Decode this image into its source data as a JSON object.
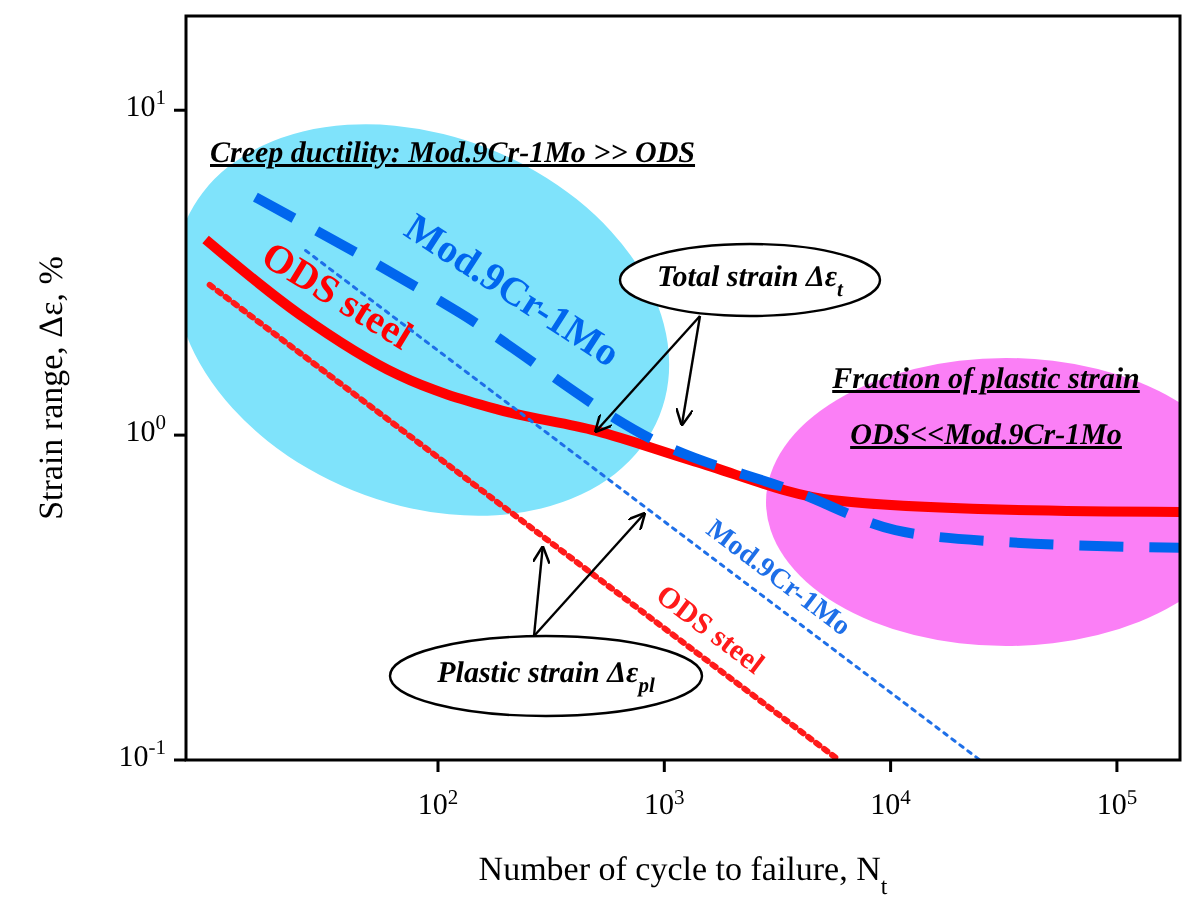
{
  "chart_data": {
    "type": "line",
    "xlabel": "Number of cycle to failure, N$_{t}$",
    "ylabel": "Strain range, Δε, %",
    "log": "xy",
    "xlim": [
      7.7,
      190000
    ],
    "ylim": [
      0.1,
      19.5
    ],
    "xticks": [
      {
        "value": 100,
        "label": "10$^{2}$"
      },
      {
        "value": 1000,
        "label": "10$^{3}$"
      },
      {
        "value": 10000,
        "label": "10$^{4}$"
      },
      {
        "value": 100000,
        "label": "10$^{5}$"
      }
    ],
    "yticks": [
      {
        "value": 0.1,
        "label": "10$^{-1}$"
      },
      {
        "value": 1,
        "label": "10$^{0}$"
      },
      {
        "value": 10,
        "label": "10$^{1}$"
      }
    ],
    "grid": false,
    "marker": "none",
    "series": [
      {
        "name": "ODS steel",
        "color": "#ff0000",
        "line_style": "solid",
        "x": [
          9.4,
          24.5,
          67,
          183,
          500,
          1360,
          5600,
          30000,
          190000
        ],
        "values": [
          4.0,
          2.35,
          1.53,
          1.2,
          1.03,
          0.83,
          0.63,
          0.59,
          0.58
        ]
      },
      {
        "name": "Mod.9Cr-1Mo",
        "color": "#0066ee",
        "line_style": "dashed",
        "x": [
          15.6,
          122,
          1000,
          3800,
          10500,
          30000,
          190000
        ],
        "values": [
          5.4,
          2.4,
          0.93,
          0.67,
          0.51,
          0.47,
          0.45
        ]
      },
      {
        "name": "Mod.9Cr-1Mo",
        "color": "#1e6fe8",
        "line_style": "dotted",
        "x": [
          26,
          24800
        ],
        "values": [
          3.7,
          0.1
        ]
      },
      {
        "name": "ODS steel",
        "color": "#ff1a1a",
        "line_style": "dotted",
        "x": [
          9.8,
          5900
        ],
        "values": [
          2.9,
          0.1
        ]
      }
    ],
    "annotations": [
      "Creep ductility: Mod.9Cr-1Mo >> ODS",
      {
        "text": "Total strain Δε$_{t}$",
        "x": 500,
        "y": 1.03
      },
      {
        "text": "Plastic strain Δε$_{pl}$",
        "x": 290,
        "y": 0.45
      },
      "Fraction of plastic strain",
      "ODS<<Mod.9Cr-1Mo"
    ]
  }
}
